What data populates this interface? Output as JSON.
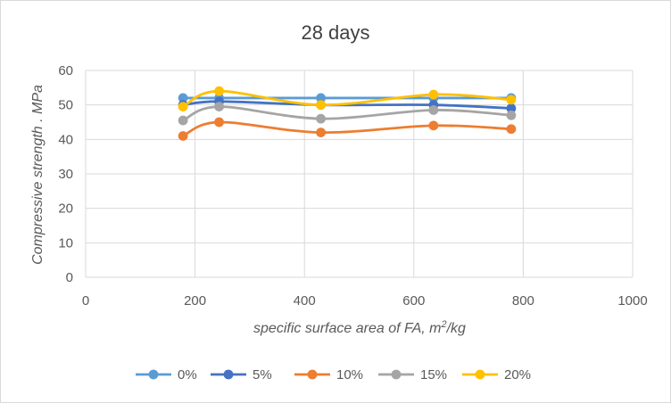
{
  "chart_data": {
    "type": "line",
    "title": "28 days",
    "xlabel": {
      "prefix": "specific surface area of FA, m",
      "sup": "2",
      "suffix": "/kg"
    },
    "ylabel": "Compressive strength . MPa",
    "xlim": [
      0,
      1000
    ],
    "ylim": [
      0,
      60
    ],
    "x_ticks": [
      0,
      200,
      400,
      600,
      800,
      1000
    ],
    "y_ticks": [
      0,
      10,
      20,
      30,
      40,
      50,
      60
    ],
    "grid": true,
    "smooth": true,
    "legend_position": "bottom",
    "x": [
      178,
      244,
      430,
      636,
      778
    ],
    "series": [
      {
        "name": "0%",
        "color": "#5B9BD5",
        "values": [
          52,
          52,
          52,
          52,
          52
        ]
      },
      {
        "name": "5%",
        "color": "#4472C4",
        "values": [
          50,
          51,
          50,
          50,
          49
        ]
      },
      {
        "name": "10%",
        "color": "#ED7D31",
        "values": [
          41,
          45,
          42,
          44,
          43
        ]
      },
      {
        "name": "15%",
        "color": "#A5A5A5",
        "values": [
          45.5,
          49.5,
          46,
          48.5,
          47
        ]
      },
      {
        "name": "20%",
        "color": "#FFC000",
        "values": [
          49.5,
          54,
          50,
          53,
          51.5
        ]
      }
    ]
  }
}
